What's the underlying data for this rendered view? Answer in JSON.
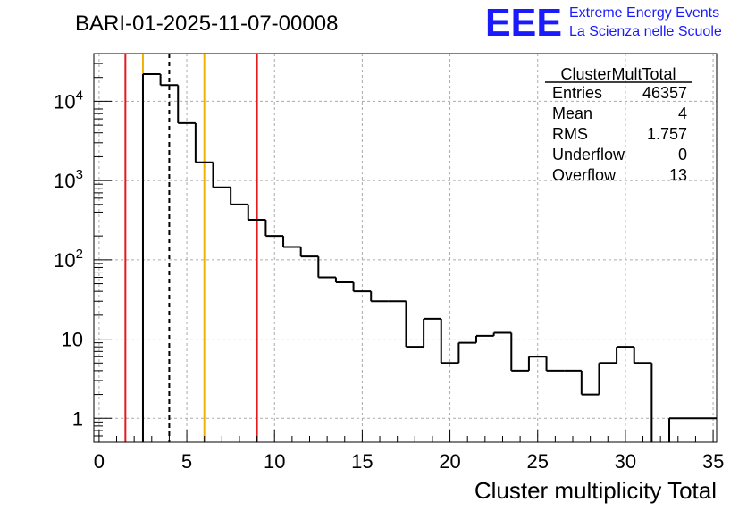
{
  "chart_data": {
    "type": "histogram",
    "title": "BARI-01-2025-11-07-00008",
    "xlabel": "Cluster multiplicity Total",
    "ylabel": "",
    "yscale": "log",
    "xlim": [
      -0.3,
      35.2
    ],
    "ylim": [
      0.5,
      40000
    ],
    "grid": true,
    "bin_width": 1,
    "bin_edges_start": 2.5,
    "bins": [
      {
        "lo": 2.5,
        "hi": 3.5,
        "count": 22000
      },
      {
        "lo": 3.5,
        "hi": 4.5,
        "count": 16000
      },
      {
        "lo": 4.5,
        "hi": 5.5,
        "count": 5300
      },
      {
        "lo": 5.5,
        "hi": 6.5,
        "count": 1700
      },
      {
        "lo": 6.5,
        "hi": 7.5,
        "count": 820
      },
      {
        "lo": 7.5,
        "hi": 8.5,
        "count": 500
      },
      {
        "lo": 8.5,
        "hi": 9.5,
        "count": 320
      },
      {
        "lo": 9.5,
        "hi": 10.5,
        "count": 200
      },
      {
        "lo": 10.5,
        "hi": 11.5,
        "count": 145
      },
      {
        "lo": 11.5,
        "hi": 12.5,
        "count": 110
      },
      {
        "lo": 12.5,
        "hi": 13.5,
        "count": 60
      },
      {
        "lo": 13.5,
        "hi": 14.5,
        "count": 52
      },
      {
        "lo": 14.5,
        "hi": 15.5,
        "count": 40
      },
      {
        "lo": 15.5,
        "hi": 16.5,
        "count": 30
      },
      {
        "lo": 16.5,
        "hi": 17.5,
        "count": 30
      },
      {
        "lo": 17.5,
        "hi": 18.5,
        "count": 8
      },
      {
        "lo": 18.5,
        "hi": 19.5,
        "count": 18
      },
      {
        "lo": 19.5,
        "hi": 20.5,
        "count": 5
      },
      {
        "lo": 20.5,
        "hi": 21.5,
        "count": 9
      },
      {
        "lo": 21.5,
        "hi": 22.5,
        "count": 11
      },
      {
        "lo": 22.5,
        "hi": 23.5,
        "count": 12
      },
      {
        "lo": 23.5,
        "hi": 24.5,
        "count": 4
      },
      {
        "lo": 24.5,
        "hi": 25.5,
        "count": 6
      },
      {
        "lo": 25.5,
        "hi": 26.5,
        "count": 4
      },
      {
        "lo": 26.5,
        "hi": 27.5,
        "count": 4
      },
      {
        "lo": 27.5,
        "hi": 28.5,
        "count": 2
      },
      {
        "lo": 28.5,
        "hi": 29.5,
        "count": 5
      },
      {
        "lo": 29.5,
        "hi": 30.5,
        "count": 8
      },
      {
        "lo": 30.5,
        "hi": 31.5,
        "count": 5
      },
      {
        "lo": 31.5,
        "hi": 32.5,
        "count": 0
      },
      {
        "lo": 32.5,
        "hi": 35.2,
        "count": 1
      }
    ],
    "x_ticks": [
      {
        "value": 0,
        "label": "0"
      },
      {
        "value": 5,
        "label": "5"
      },
      {
        "value": 10,
        "label": "10"
      },
      {
        "value": 15,
        "label": "15"
      },
      {
        "value": 20,
        "label": "20"
      },
      {
        "value": 25,
        "label": "25"
      },
      {
        "value": 30,
        "label": "30"
      },
      {
        "value": 35,
        "label": "35"
      }
    ],
    "y_ticks": [
      {
        "value": 1,
        "base": "1",
        "exp": ""
      },
      {
        "value": 10,
        "base": "10",
        "exp": ""
      },
      {
        "value": 100,
        "base": "10",
        "exp": "2"
      },
      {
        "value": 1000,
        "base": "10",
        "exp": "3"
      },
      {
        "value": 10000,
        "base": "10",
        "exp": "4"
      }
    ],
    "reference_lines": [
      {
        "x": 1.5,
        "color": "#e31a1c",
        "style": "solid"
      },
      {
        "x": 2.5,
        "color": "#f2b200",
        "style": "solid"
      },
      {
        "x": 4.0,
        "color": "#000000",
        "style": "dashed"
      },
      {
        "x": 6.0,
        "color": "#f2b200",
        "style": "solid"
      },
      {
        "x": 9.0,
        "color": "#e31a1c",
        "style": "solid"
      }
    ],
    "stats_box": {
      "name": "ClusterMultTotal",
      "rows": [
        {
          "label": "Entries",
          "value": "46357"
        },
        {
          "label": "Mean",
          "value": "4"
        },
        {
          "label": "RMS",
          "value": "1.757"
        },
        {
          "label": "Underflow",
          "value": "0"
        },
        {
          "label": "Overflow",
          "value": "13"
        }
      ]
    }
  },
  "logo": {
    "mark": "EEE",
    "line1": "Extreme Energy Events",
    "line2": "La Scienza nelle Scuole",
    "color": "#1a1aff"
  },
  "colors": {
    "grid": "#aaaaaa",
    "frame": "#000000",
    "hist": "#000000"
  }
}
